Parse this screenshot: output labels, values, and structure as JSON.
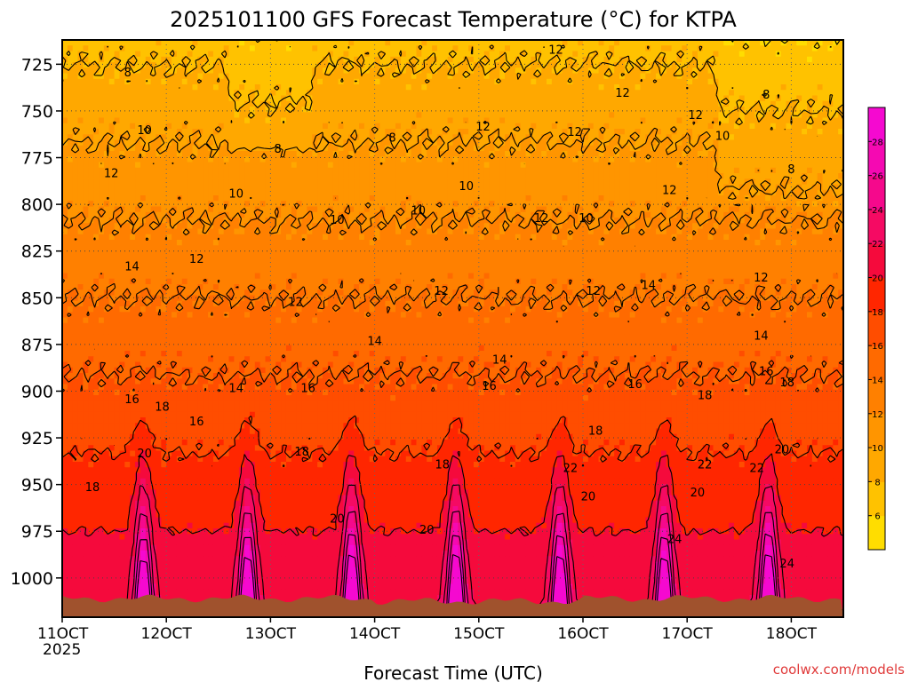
{
  "chart_data": {
    "type": "heatmap",
    "title": "2025101100 GFS Forecast Temperature (°C) for KTPA",
    "xlabel": "Forecast Time (UTC)",
    "ylabel": "",
    "credit": "coolwx.com/models",
    "x_ticks": [
      {
        "label": "11OCT",
        "sublabel": "2025",
        "day": 11
      },
      {
        "label": "12OCT",
        "sublabel": "",
        "day": 12
      },
      {
        "label": "13OCT",
        "sublabel": "",
        "day": 13
      },
      {
        "label": "14OCT",
        "sublabel": "",
        "day": 14
      },
      {
        "label": "15OCT",
        "sublabel": "",
        "day": 15
      },
      {
        "label": "16OCT",
        "sublabel": "",
        "day": 16
      },
      {
        "label": "17OCT",
        "sublabel": "",
        "day": 17
      },
      {
        "label": "18OCT",
        "sublabel": "",
        "day": 18
      }
    ],
    "xlim": [
      11,
      18.5
    ],
    "y_ticks": [
      "725",
      "750",
      "775",
      "800",
      "825",
      "850",
      "875",
      "900",
      "925",
      "950",
      "975",
      "1000"
    ],
    "ylim": [
      712,
      1021
    ],
    "colorbar": {
      "levels": [
        6,
        8,
        10,
        12,
        14,
        16,
        18,
        20,
        22,
        24,
        26,
        28
      ],
      "labels": [
        "6",
        "8",
        "10",
        "12",
        "14",
        "16",
        "18",
        "20",
        "22",
        "24",
        "26",
        "28"
      ],
      "colors": [
        "#ffdd00",
        "#ffc200",
        "#ffa800",
        "#ff9500",
        "#ff8000",
        "#ff6a00",
        "#ff4d00",
        "#ff2600",
        "#f50a3c",
        "#f50a63",
        "#f5098c",
        "#f509b2",
        "#f509d0"
      ]
    },
    "surface_pressure_hpa": 1011,
    "contour_labels": [
      {
        "text": "8",
        "t": 11.63,
        "p": 729
      },
      {
        "text": "10",
        "t": 11.79,
        "p": 760
      },
      {
        "text": "12",
        "t": 11.47,
        "p": 783
      },
      {
        "text": "14",
        "t": 11.67,
        "p": 833
      },
      {
        "text": "16",
        "t": 11.67,
        "p": 904
      },
      {
        "text": "18",
        "t": 11.96,
        "p": 908
      },
      {
        "text": "20",
        "t": 11.79,
        "p": 933
      },
      {
        "text": "18",
        "t": 11.29,
        "p": 951
      },
      {
        "text": "16",
        "t": 12.29,
        "p": 916
      },
      {
        "text": "12",
        "t": 12.29,
        "p": 829
      },
      {
        "text": "10",
        "t": 12.67,
        "p": 794
      },
      {
        "text": "8",
        "t": 13.07,
        "p": 770
      },
      {
        "text": "10",
        "t": 13.64,
        "p": 808
      },
      {
        "text": "12",
        "t": 13.24,
        "p": 852
      },
      {
        "text": "14",
        "t": 12.67,
        "p": 898
      },
      {
        "text": "16",
        "t": 13.36,
        "p": 898
      },
      {
        "text": "18",
        "t": 13.3,
        "p": 932
      },
      {
        "text": "8",
        "t": 14.17,
        "p": 764
      },
      {
        "text": "10",
        "t": 14.42,
        "p": 803
      },
      {
        "text": "12",
        "t": 14.64,
        "p": 846
      },
      {
        "text": "14",
        "t": 14.0,
        "p": 873
      },
      {
        "text": "14",
        "t": 15.2,
        "p": 883
      },
      {
        "text": "16",
        "t": 15.1,
        "p": 897
      },
      {
        "text": "18",
        "t": 14.65,
        "p": 939
      },
      {
        "text": "20",
        "t": 13.64,
        "p": 968
      },
      {
        "text": "20",
        "t": 14.5,
        "p": 974
      },
      {
        "text": "12",
        "t": 15.04,
        "p": 758
      },
      {
        "text": "10",
        "t": 14.88,
        "p": 790
      },
      {
        "text": "12",
        "t": 15.6,
        "p": 807
      },
      {
        "text": "10",
        "t": 16.03,
        "p": 807
      },
      {
        "text": "12",
        "t": 15.74,
        "p": 717
      },
      {
        "text": "12",
        "t": 16.38,
        "p": 740
      },
      {
        "text": "12",
        "t": 15.92,
        "p": 761
      },
      {
        "text": "12",
        "t": 16.1,
        "p": 846
      },
      {
        "text": "14",
        "t": 16.63,
        "p": 843
      },
      {
        "text": "16",
        "t": 16.5,
        "p": 896
      },
      {
        "text": "18",
        "t": 16.12,
        "p": 921
      },
      {
        "text": "22",
        "t": 15.88,
        "p": 941
      },
      {
        "text": "20",
        "t": 16.05,
        "p": 956
      },
      {
        "text": "12",
        "t": 17.08,
        "p": 752
      },
      {
        "text": "12",
        "t": 16.83,
        "p": 792
      },
      {
        "text": "18",
        "t": 17.17,
        "p": 902
      },
      {
        "text": "22",
        "t": 17.17,
        "p": 939
      },
      {
        "text": "20",
        "t": 17.1,
        "p": 954
      },
      {
        "text": "24",
        "t": 16.88,
        "p": 979
      },
      {
        "text": "8",
        "t": 17.76,
        "p": 741
      },
      {
        "text": "10",
        "t": 17.34,
        "p": 763
      },
      {
        "text": "8",
        "t": 18.0,
        "p": 781
      },
      {
        "text": "12",
        "t": 17.71,
        "p": 839
      },
      {
        "text": "14",
        "t": 17.71,
        "p": 870
      },
      {
        "text": "16",
        "t": 17.76,
        "p": 889
      },
      {
        "text": "18",
        "t": 17.96,
        "p": 895
      },
      {
        "text": "22",
        "t": 17.67,
        "p": 941
      },
      {
        "text": "20",
        "t": 17.91,
        "p": 931
      },
      {
        "text": "24",
        "t": 17.96,
        "p": 992
      }
    ]
  }
}
